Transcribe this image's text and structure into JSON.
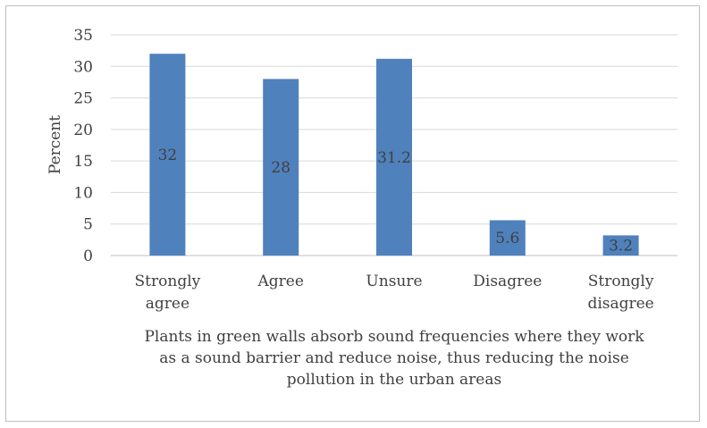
{
  "chart_data": {
    "type": "bar",
    "categories": [
      [
        "Strongly",
        "agree"
      ],
      [
        "Agree"
      ],
      [
        "Unsure"
      ],
      [
        "Disagree"
      ],
      [
        "Strongly",
        "disagree"
      ]
    ],
    "values": [
      32,
      28,
      31.2,
      5.6,
      3.2
    ],
    "data_labels": [
      "32",
      "28",
      "31.2",
      "5.6",
      "3.2"
    ],
    "ylabel": "Percent",
    "xlabel": [
      "Plants in green walls absorb sound frequencies where they work",
      "as a sound barrier and reduce noise, thus reducing the noise",
      "pollution in the urban areas"
    ],
    "ylim": [
      0,
      35
    ],
    "yticks": [
      "0",
      "5",
      "10",
      "15",
      "20",
      "25",
      "30",
      "35"
    ],
    "grid": true,
    "legend": "none",
    "colors": {
      "bar": "#4f81bd",
      "grid": "#d9d9d9",
      "axis": "#bfbfbf",
      "text": "#404040"
    }
  }
}
